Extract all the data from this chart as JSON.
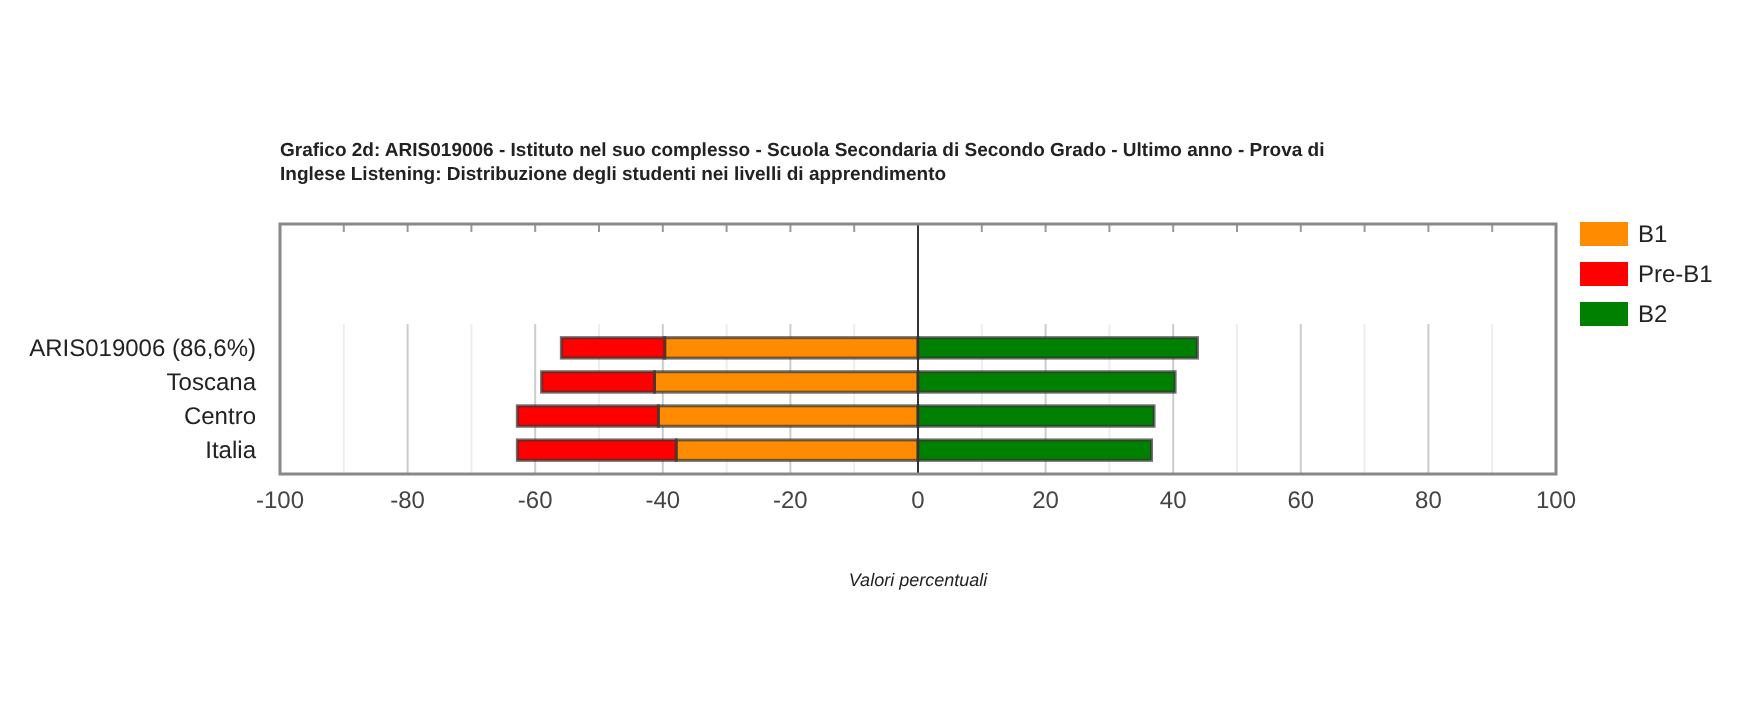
{
  "chart_data": {
    "type": "bar",
    "orientation": "horizontal",
    "stacked": true,
    "title": "Grafico 2d: ARIS019006 - Istituto nel suo complesso - Scuola Secondaria di Secondo Grado - Ultimo anno - Prova di Inglese Listening: Distribuzione degli studenti nei livelli di apprendimento",
    "xlabel": "Valori percentuali",
    "categories": [
      "ARIS019006 (86,6%)",
      "Toscana",
      "Centro",
      "Italia"
    ],
    "series": [
      {
        "name": "B1",
        "color": "#ff8c00",
        "values": [
          -39.7,
          -41.3,
          -40.7,
          -37.9
        ]
      },
      {
        "name": "Pre-B1",
        "color": "#ff0000",
        "values": [
          -16.2,
          -17.7,
          -22.1,
          -24.9
        ]
      },
      {
        "name": "B2",
        "color": "#008000",
        "values": [
          43.8,
          40.3,
          37.0,
          36.6
        ]
      }
    ],
    "xlim": [
      -100,
      100
    ],
    "xticks": [
      -100,
      {
        "value": -90,
        "label": null
      },
      -80,
      {
        "value": -70,
        "label": null
      },
      -60,
      {
        "value": -50,
        "label": null
      },
      -40,
      {
        "value": -30,
        "label": null
      },
      -20,
      {
        "value": -10,
        "label": null
      },
      0,
      {
        "value": 10,
        "label": null
      },
      20,
      {
        "value": 30,
        "label": null
      },
      40,
      {
        "value": 50,
        "label": null
      },
      60,
      {
        "value": 70,
        "label": null
      },
      80,
      {
        "value": 90,
        "label": null
      },
      100
    ],
    "grid": "x",
    "legend": "top right"
  }
}
